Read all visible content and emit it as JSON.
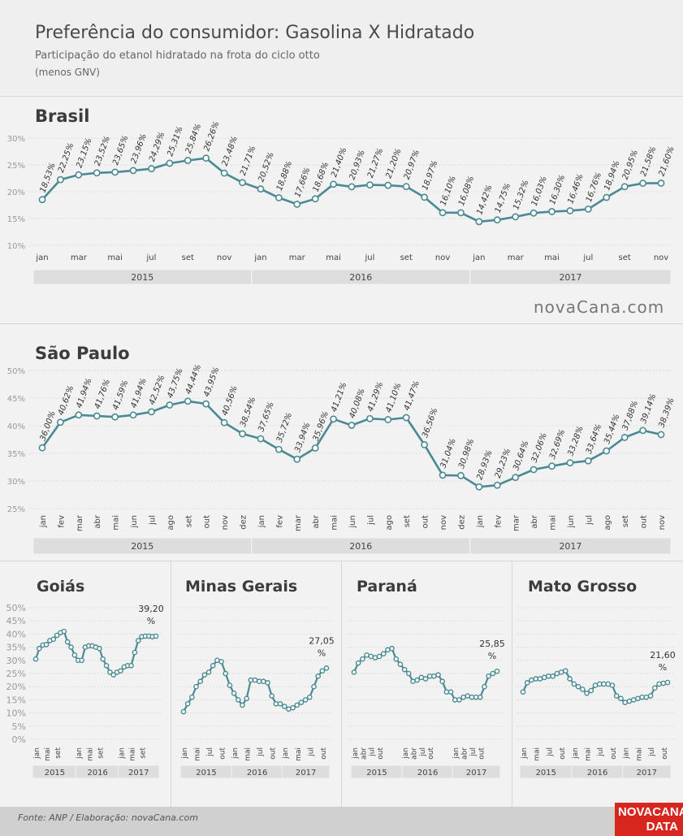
{
  "header": {
    "title": "Preferência do consumidor: Gasolina X Hidratado",
    "subtitle": "Participação do etanol hidratado na frota do ciclo otto",
    "subtitle2": "(menos GNV)"
  },
  "brand": "novaCana.com",
  "footer": {
    "source": "Fonte: ANP / Elaboração: novaCana.com",
    "logo_line1": "NOVACANA",
    "logo_line2": "DATA"
  },
  "colors": {
    "line": "#4a8a93",
    "marker_fill": "#ffffff",
    "grid": "#dcdcdc",
    "year_band": "#dddddd",
    "logo": "#d7261e"
  },
  "chart_data": [
    {
      "id": "brasil",
      "type": "line",
      "title": "Brasil",
      "unit": "%",
      "ylim": [
        10,
        30
      ],
      "yticks": [
        "10%",
        "15%",
        "20%",
        "25%",
        "30%"
      ],
      "x": [
        "jan",
        "fev",
        "mar",
        "abr",
        "mai",
        "jun",
        "jul",
        "ago",
        "set",
        "out",
        "nov",
        "dez",
        "jan",
        "fev",
        "mar",
        "abr",
        "mai",
        "jun",
        "jul",
        "ago",
        "set",
        "out",
        "nov",
        "dez",
        "jan",
        "fev",
        "mar",
        "abr",
        "mai",
        "jun",
        "jul",
        "ago",
        "set",
        "out",
        "nov"
      ],
      "xtick_labels": [
        "jan",
        "",
        "mar",
        "",
        "mai",
        "",
        "jul",
        "",
        "set",
        "",
        "nov",
        "",
        "jan",
        "",
        "mar",
        "",
        "mai",
        "",
        "jul",
        "",
        "set",
        "",
        "nov",
        "",
        "jan",
        "",
        "mar",
        "",
        "mai",
        "",
        "jul",
        "",
        "set",
        "",
        "nov"
      ],
      "years": [
        {
          "label": "2015",
          "n": 12
        },
        {
          "label": "2016",
          "n": 12
        },
        {
          "label": "2017",
          "n": 11
        }
      ],
      "values": [
        18.53,
        22.25,
        23.15,
        23.52,
        23.65,
        23.96,
        24.29,
        25.31,
        25.84,
        26.26,
        23.48,
        21.71,
        20.52,
        18.88,
        17.66,
        18.68,
        21.4,
        20.93,
        21.27,
        21.2,
        20.97,
        18.97,
        16.1,
        16.08,
        14.42,
        14.75,
        15.32,
        16.03,
        16.3,
        16.46,
        16.76,
        18.94,
        20.95,
        21.58,
        21.6
      ],
      "labels": [
        "18,53%",
        "22,25%",
        "23,15%",
        "23,52%",
        "23,65%",
        "23,96%",
        "24,29%",
        "25,31%",
        "25,84%",
        "26,26%",
        "23,48%",
        "21,71%",
        "20,52%",
        "18,88%",
        "17,66%",
        "18,68%",
        "21,40%",
        "20,93%",
        "21,27%",
        "21,20%",
        "20,97%",
        "18,97%",
        "16,10%",
        "16,08%",
        "14,42%",
        "14,75%",
        "15,32%",
        "16,03%",
        "16,30%",
        "16,46%",
        "16,76%",
        "18,94%",
        "20,95%",
        "21,58%",
        "21,60%"
      ]
    },
    {
      "id": "sao-paulo",
      "type": "line",
      "title": "São Paulo",
      "unit": "%",
      "ylim": [
        25,
        50
      ],
      "yticks": [
        "25%",
        "30%",
        "35%",
        "40%",
        "45%",
        "50%"
      ],
      "x": [
        "jan",
        "fev",
        "mar",
        "abr",
        "mai",
        "jun",
        "jul",
        "ago",
        "set",
        "out",
        "nov",
        "dez",
        "jan",
        "fev",
        "mar",
        "abr",
        "mai",
        "jun",
        "jul",
        "ago",
        "set",
        "out",
        "nov",
        "dez",
        "jan",
        "fev",
        "mar",
        "abr",
        "mai",
        "jun",
        "jul",
        "ago",
        "set",
        "out",
        "nov"
      ],
      "xtick_labels": [
        "jan",
        "fev",
        "mar",
        "abr",
        "mai",
        "jun",
        "jul",
        "ago",
        "set",
        "out",
        "nov",
        "dez",
        "jan",
        "fev",
        "mar",
        "abr",
        "mai",
        "jun",
        "jul",
        "ago",
        "set",
        "out",
        "nov",
        "dez",
        "jan",
        "fev",
        "mar",
        "abr",
        "mai",
        "jun",
        "jul",
        "ago",
        "set",
        "out",
        "nov"
      ],
      "years": [
        {
          "label": "2015",
          "n": 12
        },
        {
          "label": "2016",
          "n": 12
        },
        {
          "label": "2017",
          "n": 11
        }
      ],
      "values": [
        36.0,
        40.62,
        41.94,
        41.76,
        41.59,
        41.94,
        42.52,
        43.75,
        44.44,
        43.95,
        40.56,
        38.54,
        37.65,
        35.72,
        33.94,
        35.96,
        41.21,
        40.08,
        41.29,
        41.1,
        41.47,
        36.56,
        31.04,
        30.98,
        28.93,
        29.23,
        30.64,
        32.06,
        32.69,
        33.28,
        33.64,
        35.44,
        37.88,
        39.14,
        38.39
      ],
      "labels": [
        "36,00%",
        "40,62%",
        "41,94%",
        "41,76%",
        "41,59%",
        "41,94%",
        "42,52%",
        "43,75%",
        "44,44%",
        "43,95%",
        "40,56%",
        "38,54%",
        "37,65%",
        "35,72%",
        "33,94%",
        "35,96%",
        "41,21%",
        "40,08%",
        "41,29%",
        "41,10%",
        "41,47%",
        "36,56%",
        "31,04%",
        "30,98%",
        "28,93%",
        "29,23%",
        "30,64%",
        "32,06%",
        "32,69%",
        "33,28%",
        "33,64%",
        "35,44%",
        "37,88%",
        "39,14%",
        "38,39%"
      ]
    },
    {
      "id": "goias",
      "type": "line",
      "title": "Goiás",
      "ylim": [
        0,
        50
      ],
      "yticks": [
        "0%",
        "5%",
        "10%",
        "15%",
        "20%",
        "25%",
        "30%",
        "35%",
        "40%",
        "45%",
        "50%"
      ],
      "xtick_labels": [
        "jan",
        "",
        "",
        "mai",
        "",
        "",
        "set",
        "",
        "",
        "",
        "",
        "",
        "jan",
        "",
        "",
        "mai",
        "",
        "",
        "set",
        "",
        "",
        "",
        "",
        "",
        "jan",
        "",
        "",
        "mai",
        "",
        "",
        "set",
        "",
        "",
        "",
        ""
      ],
      "years": [
        {
          "label": "2015",
          "n": 12
        },
        {
          "label": "2016",
          "n": 12
        },
        {
          "label": "2017",
          "n": 11
        }
      ],
      "values": [
        30.5,
        34.5,
        35.8,
        36.0,
        37.5,
        38.0,
        39.5,
        40.5,
        41.0,
        37.0,
        35.0,
        32.0,
        30.0,
        30.0,
        35.0,
        35.5,
        35.5,
        35.0,
        34.5,
        30.5,
        28.0,
        25.5,
        24.5,
        25.5,
        26.0,
        27.5,
        28.0,
        28.0,
        33.0,
        37.5,
        39.0,
        39.2,
        39.2,
        39.0,
        39.2
      ],
      "end_label": [
        "39,20",
        "%"
      ]
    },
    {
      "id": "minas-gerais",
      "type": "line",
      "title": "Minas Gerais",
      "ylim": [
        0,
        50
      ],
      "xtick_labels": [
        "jan",
        "",
        "",
        "mai",
        "",
        "",
        "jul",
        "",
        "",
        "out",
        "",
        "",
        "jan",
        "",
        "",
        "mai",
        "",
        "",
        "jul",
        "",
        "",
        "out",
        "",
        "",
        "jan",
        "",
        "",
        "mai",
        "",
        "",
        "jul",
        "",
        "",
        "out",
        ""
      ],
      "years": [
        {
          "label": "2015",
          "n": 12
        },
        {
          "label": "2016",
          "n": 12
        },
        {
          "label": "2017",
          "n": 11
        }
      ],
      "values": [
        10.5,
        13.5,
        16.0,
        20.0,
        22.0,
        24.5,
        25.5,
        28.0,
        30.0,
        29.5,
        25.0,
        20.5,
        17.5,
        15.0,
        13.0,
        15.5,
        22.5,
        22.5,
        22.0,
        22.0,
        21.5,
        16.5,
        13.5,
        13.5,
        12.5,
        11.5,
        12.0,
        13.0,
        14.0,
        15.0,
        16.0,
        20.0,
        24.0,
        26.0,
        27.05
      ],
      "end_label": [
        "27,05",
        "%"
      ]
    },
    {
      "id": "parana",
      "type": "line",
      "title": "Paraná",
      "ylim": [
        0,
        50
      ],
      "xtick_labels": [
        "jan",
        "",
        "abr",
        "",
        "jul",
        "",
        "out",
        "",
        "",
        "",
        "",
        "",
        "jan",
        "",
        "abr",
        "",
        "jul",
        "",
        "out",
        "",
        "",
        "",
        "",
        "",
        "jan",
        "",
        "abr",
        "",
        "jul",
        "",
        "out",
        "",
        "",
        "",
        ""
      ],
      "years": [
        {
          "label": "2015",
          "n": 12
        },
        {
          "label": "2016",
          "n": 12
        },
        {
          "label": "2017",
          "n": 11
        }
      ],
      "values": [
        25.5,
        29.0,
        30.5,
        32.0,
        31.5,
        31.0,
        31.5,
        32.5,
        34.0,
        34.5,
        30.5,
        28.5,
        26.5,
        25.0,
        22.0,
        22.5,
        23.5,
        23.0,
        24.0,
        24.0,
        24.5,
        22.0,
        18.0,
        18.0,
        15.0,
        15.0,
        16.0,
        16.5,
        16.0,
        16.0,
        16.0,
        20.0,
        24.0,
        25.0,
        25.85
      ],
      "end_label": [
        "25,85",
        "%"
      ]
    },
    {
      "id": "mato-grosso",
      "type": "line",
      "title": "Mato Grosso",
      "ylim": [
        0,
        50
      ],
      "xtick_labels": [
        "jan",
        "",
        "",
        "mai",
        "",
        "",
        "jul",
        "",
        "",
        "out",
        "",
        "",
        "jan",
        "",
        "",
        "mai",
        "",
        "",
        "jul",
        "",
        "",
        "out",
        "",
        "",
        "jan",
        "",
        "",
        "mai",
        "",
        "",
        "jul",
        "",
        "",
        "out",
        ""
      ],
      "years": [
        {
          "label": "2015",
          "n": 12
        },
        {
          "label": "2016",
          "n": 12
        },
        {
          "label": "2017",
          "n": 11
        }
      ],
      "values": [
        18.0,
        21.5,
        22.5,
        23.0,
        23.0,
        23.5,
        24.0,
        24.0,
        25.0,
        25.5,
        26.0,
        23.0,
        21.0,
        20.0,
        19.0,
        17.5,
        18.5,
        20.5,
        21.0,
        21.0,
        21.0,
        20.5,
        16.5,
        15.5,
        14.0,
        14.5,
        15.0,
        15.5,
        16.0,
        16.0,
        16.5,
        19.5,
        21.0,
        21.3,
        21.6
      ],
      "end_label": [
        "21,60",
        "%"
      ]
    }
  ]
}
